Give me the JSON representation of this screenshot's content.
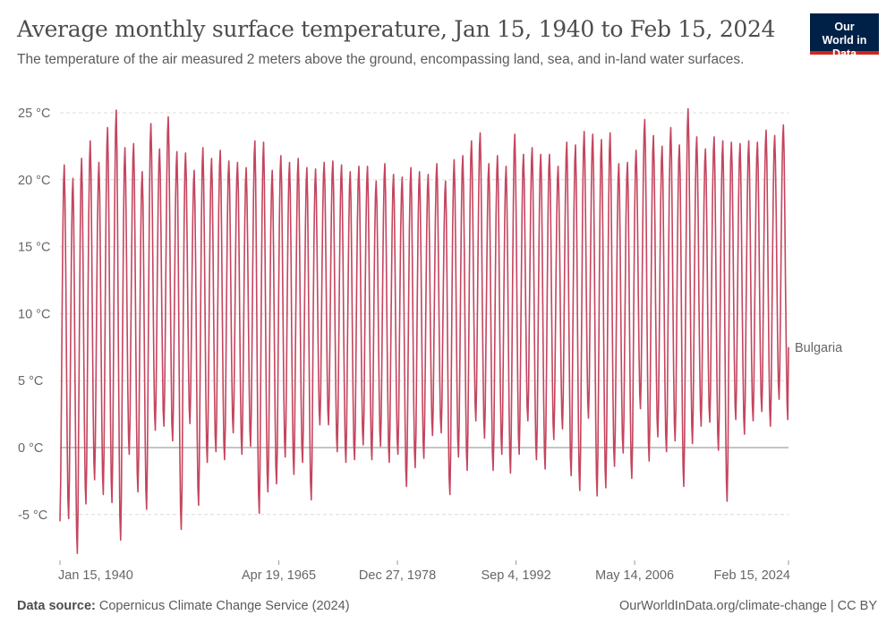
{
  "header": {
    "title": "Average monthly surface temperature, Jan 15, 1940 to Feb 15, 2024",
    "subtitle": "The temperature of the air measured 2 meters above the ground, encompassing land, sea, and in-land water surfaces.",
    "logo_text": "Our World in Data"
  },
  "footer": {
    "source_label": "Data source:",
    "source_text": "Copernicus Climate Change Service (2024)",
    "right_text": "OurWorldInData.org/climate-change | CC BY"
  },
  "colors": {
    "series": "#c4455e",
    "logo_bg": "#002147",
    "logo_accent": "#ce261e"
  },
  "chart_data": {
    "type": "line",
    "title": "Average monthly surface temperature, Jan 15, 1940 to Feb 15, 2024",
    "xlabel": "",
    "ylabel": "",
    "ylim": [
      -8.5,
      25.5
    ],
    "y_ticks": [
      -5,
      0,
      5,
      10,
      15,
      20,
      25
    ],
    "y_tick_labels": [
      "-5 °C",
      "0 °C",
      "5 °C",
      "10 °C",
      "15 °C",
      "20 °C",
      "25 °C"
    ],
    "x_range": [
      "1940-01-15",
      "2024-02-15"
    ],
    "x_ticks": [
      {
        "date": "1940-01-15",
        "label": "Jan 15, 1940"
      },
      {
        "date": "1965-04-19",
        "label": "Apr 19, 1965"
      },
      {
        "date": "1978-12-27",
        "label": "Dec 27, 1978"
      },
      {
        "date": "1992-09-04",
        "label": "Sep 4, 1992"
      },
      {
        "date": "2006-05-14",
        "label": "May 14, 2006"
      },
      {
        "date": "2024-02-15",
        "label": "Feb 15, 2024"
      }
    ],
    "grid": "horizontal dashed",
    "legend": "inline label at line end (right)",
    "series": [
      {
        "name": "Bulgaria",
        "frequency": "monthly",
        "summer_peak_years": [
          1940,
          1941,
          1942,
          1943,
          1944,
          1945,
          1946,
          1947,
          1948,
          1949,
          1950,
          1951,
          1952,
          1953,
          1954,
          1955,
          1956,
          1957,
          1958,
          1959,
          1960,
          1961,
          1962,
          1963,
          1964,
          1965,
          1966,
          1967,
          1968,
          1969,
          1970,
          1971,
          1972,
          1973,
          1974,
          1975,
          1976,
          1977,
          1978,
          1979,
          1980,
          1981,
          1982,
          1983,
          1984,
          1985,
          1986,
          1987,
          1988,
          1989,
          1990,
          1991,
          1992,
          1993,
          1994,
          1995,
          1996,
          1997,
          1998,
          1999,
          2000,
          2001,
          2002,
          2003,
          2004,
          2005,
          2006,
          2007,
          2008,
          2009,
          2010,
          2011,
          2012,
          2013,
          2014,
          2015,
          2016,
          2017,
          2018,
          2019,
          2020,
          2021,
          2022,
          2023
        ],
        "summer_peak": [
          21.1,
          20.1,
          21.6,
          22.9,
          21.3,
          23.9,
          25.2,
          22.4,
          22.7,
          20.6,
          24.2,
          22.3,
          24.7,
          22.1,
          22.0,
          20.7,
          22.4,
          21.6,
          22.2,
          21.4,
          21.3,
          20.9,
          22.9,
          22.8,
          20.7,
          21.8,
          21.3,
          21.6,
          20.9,
          20.8,
          21.3,
          21.4,
          21.1,
          20.6,
          21.0,
          21.0,
          19.9,
          21.2,
          20.4,
          20.2,
          20.9,
          20.6,
          20.4,
          21.2,
          19.9,
          21.5,
          21.8,
          22.9,
          23.5,
          21.2,
          21.8,
          21.0,
          23.4,
          21.9,
          22.4,
          21.9,
          21.9,
          21.0,
          22.8,
          22.6,
          23.6,
          23.4,
          23.0,
          23.5,
          21.2,
          21.3,
          22.2,
          24.5,
          23.3,
          22.5,
          23.9,
          22.6,
          25.3,
          23.2,
          22.3,
          23.2,
          22.9,
          22.8,
          22.7,
          22.9,
          22.8,
          23.7,
          23.3,
          24.1
        ],
        "winter_trough_years": [
          1940,
          1941,
          1942,
          1943,
          1944,
          1945,
          1946,
          1947,
          1948,
          1949,
          1950,
          1951,
          1952,
          1953,
          1954,
          1955,
          1956,
          1957,
          1958,
          1959,
          1960,
          1961,
          1962,
          1963,
          1964,
          1965,
          1966,
          1967,
          1968,
          1969,
          1970,
          1971,
          1972,
          1973,
          1974,
          1975,
          1976,
          1977,
          1978,
          1979,
          1980,
          1981,
          1982,
          1983,
          1984,
          1985,
          1986,
          1987,
          1988,
          1989,
          1990,
          1991,
          1992,
          1993,
          1994,
          1995,
          1996,
          1997,
          1998,
          1999,
          2000,
          2001,
          2002,
          2003,
          2004,
          2005,
          2006,
          2007,
          2008,
          2009,
          2010,
          2011,
          2012,
          2013,
          2014,
          2015,
          2016,
          2017,
          2018,
          2019,
          2020,
          2021,
          2022,
          2023,
          2024
        ],
        "winter_trough": [
          -5.5,
          -5.3,
          -7.9,
          -4.2,
          -2.4,
          -3.5,
          -4.1,
          -6.9,
          -0.5,
          -3.3,
          -4.6,
          1.3,
          1.6,
          0.5,
          -6.1,
          1.8,
          -4.3,
          -1.1,
          -0.3,
          -0.9,
          1.1,
          -0.5,
          0.1,
          -4.9,
          -3.3,
          -2.7,
          -0.7,
          -2.0,
          -1.1,
          -3.9,
          1.7,
          1.7,
          -0.3,
          -1.1,
          -0.9,
          0.2,
          -0.9,
          0.1,
          -1.1,
          -0.5,
          -2.9,
          -1.5,
          -0.8,
          0.9,
          1.1,
          -3.5,
          -0.7,
          -1.7,
          2.0,
          0.7,
          -1.7,
          -0.5,
          -1.9,
          -0.5,
          2.0,
          -0.9,
          -1.6,
          0.6,
          1.4,
          -2.1,
          -3.2,
          2.2,
          -3.6,
          -3.0,
          -1.4,
          -0.4,
          -2.3,
          2.9,
          -1.0,
          0.8,
          -0.3,
          0.5,
          -2.9,
          0.3,
          1.6,
          1.9,
          -0.2,
          -4.0,
          2.1,
          1.0,
          2.0,
          2.7,
          1.6,
          3.6,
          2.1
        ],
        "last_point": {
          "date": "2024-02-15",
          "value": 7.5
        }
      }
    ]
  }
}
